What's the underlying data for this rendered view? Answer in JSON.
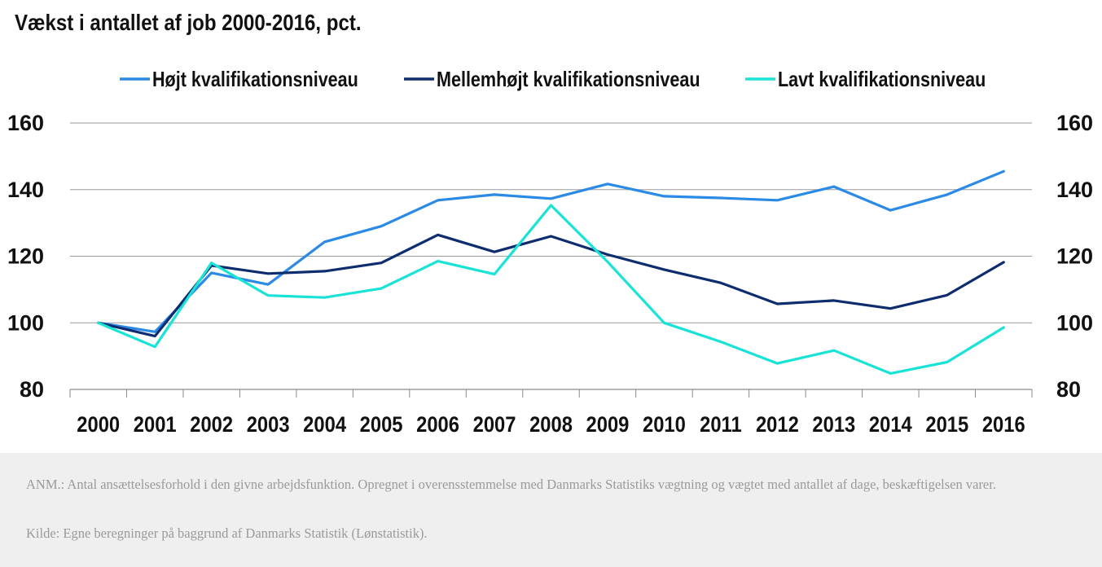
{
  "chart_data": {
    "type": "line",
    "title": "Vækst i antallet af job 2000-2016, pct.",
    "x": [
      "2000",
      "2001",
      "2002",
      "2003",
      "2004",
      "2005",
      "2006",
      "2007",
      "2008",
      "2009",
      "2010",
      "2011",
      "2012",
      "2013",
      "2014",
      "2015",
      "2016"
    ],
    "series": [
      {
        "name": "Højt kvalifikationsniveau",
        "color": "#2a8ae6",
        "values": [
          100,
          97.3,
          115,
          111.5,
          124.3,
          129,
          136.8,
          138.5,
          137.3,
          141.7,
          138,
          137.5,
          136.8,
          140.9,
          133.8,
          138.5,
          145.5
        ]
      },
      {
        "name": "Mellemhøjt kvalifikationsniveau",
        "color": "#0e2d6e",
        "values": [
          100,
          96,
          117.2,
          114.8,
          115.5,
          118,
          126.4,
          121.3,
          126,
          120.5,
          116,
          112,
          105.7,
          106.7,
          104.3,
          108.3,
          118.2
        ]
      },
      {
        "name": "Lavt kvalifikationsniveau",
        "color": "#19e3d7",
        "values": [
          100,
          92.8,
          118,
          108.2,
          107.6,
          110.3,
          118.5,
          114.6,
          135.3,
          118.3,
          100,
          94.3,
          87.8,
          91.7,
          84.8,
          88.2,
          98.6
        ]
      }
    ],
    "ylim": [
      80,
      160
    ],
    "yticks": [
      "80",
      "100",
      "120",
      "140",
      "160"
    ],
    "grid": true,
    "legend": "top"
  },
  "notes": {
    "anm": "ANM.: Antal ansættelsesforhold i den givne arbejdsfunktion. Opregnet i overensstemmelse med Danmarks Statistiks vægtning og vægtet med antallet af dage, beskæftigelsen varer.",
    "kilde": "Kilde: Egne beregninger på baggrund af Danmarks Statistik (Lønstatistik)."
  }
}
